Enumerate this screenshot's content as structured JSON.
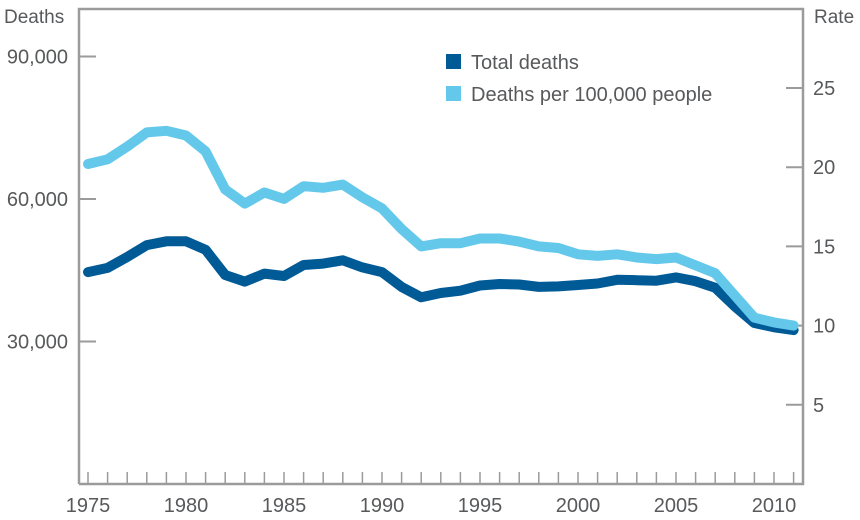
{
  "chart_data": {
    "type": "line",
    "title": "",
    "xlabel": "",
    "ylabel_left": "Deaths",
    "ylabel_right": "Rate",
    "x": [
      1975,
      1976,
      1977,
      1978,
      1979,
      1980,
      1981,
      1982,
      1983,
      1984,
      1985,
      1986,
      1987,
      1988,
      1989,
      1990,
      1991,
      1992,
      1993,
      1994,
      1995,
      1996,
      1997,
      1998,
      1999,
      2000,
      2001,
      2002,
      2003,
      2004,
      2005,
      2006,
      2007,
      2008,
      2009,
      2010,
      2011
    ],
    "xlim": [
      1975,
      2011
    ],
    "x_tick_labels": [
      "1975",
      "1980",
      "1985",
      "1990",
      "1995",
      "2000",
      "2005",
      "2010"
    ],
    "x_tick_values": [
      1975,
      1980,
      1985,
      1990,
      1995,
      2000,
      2005,
      2010
    ],
    "ylim_left": [
      0,
      100000
    ],
    "y_left_ticks": [
      30000,
      60000,
      90000
    ],
    "y_left_tick_labels": [
      "30,000",
      "60,000",
      "90,000"
    ],
    "ylim_right": [
      0,
      30
    ],
    "y_right_ticks": [
      5,
      10,
      15,
      20,
      25
    ],
    "y_right_tick_labels": [
      "5",
      "10",
      "15",
      "20",
      "25"
    ],
    "grid": false,
    "legend_position": "top-center",
    "series": [
      {
        "name": "Total deaths",
        "axis": "left",
        "color": "#005a96",
        "values": [
          44600,
          45500,
          47800,
          50300,
          51100,
          51100,
          49300,
          44000,
          42600,
          44300,
          43800,
          46100,
          46400,
          47100,
          45600,
          44600,
          41500,
          39300,
          40200,
          40700,
          41800,
          42100,
          42000,
          41500,
          41600,
          41900,
          42200,
          43000,
          42900,
          42800,
          43500,
          42700,
          41300,
          37400,
          33900,
          33000,
          32400
        ]
      },
      {
        "name": "Deaths per 100,000 people",
        "axis": "right",
        "color": "#64c8eb",
        "values": [
          20.2,
          20.5,
          21.3,
          22.2,
          22.3,
          22.0,
          21.0,
          18.6,
          17.7,
          18.4,
          18.0,
          18.8,
          18.7,
          18.9,
          18.1,
          17.4,
          16.1,
          15.0,
          15.2,
          15.2,
          15.5,
          15.5,
          15.3,
          15.0,
          14.9,
          14.5,
          14.4,
          14.5,
          14.3,
          14.2,
          14.3,
          13.8,
          13.3,
          11.9,
          10.5,
          10.2,
          10.0
        ]
      }
    ]
  },
  "colors": {
    "axis": "#9b9b9b",
    "text": "#58595b"
  }
}
